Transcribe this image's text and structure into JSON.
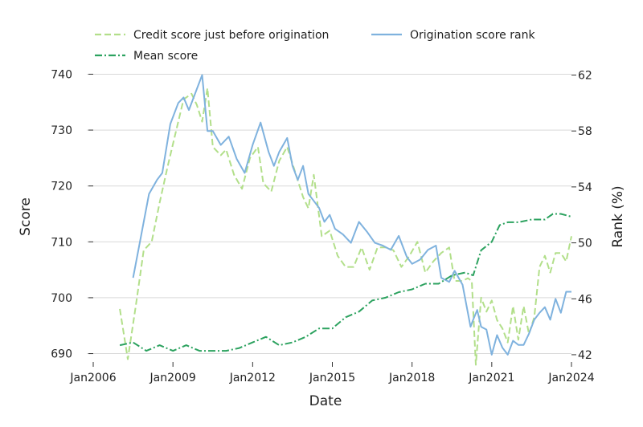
{
  "chart_data": {
    "type": "line",
    "xlabel": "Date",
    "ylabel_left": "Score",
    "ylabel_right": "Rank (%)",
    "x_ticks": [
      "Jan2006",
      "Jan2009",
      "Jan2012",
      "Jan2015",
      "Jan2018",
      "Jan2021",
      "Jan2024"
    ],
    "xlim": [
      2006.0,
      2024.0
    ],
    "ylim_left": [
      688.5,
      741.5
    ],
    "ylim_right": [
      41.48,
      62.66
    ],
    "y_ticks_left": [
      690,
      700,
      710,
      720,
      730,
      740
    ],
    "y_ticks_right": [
      42,
      46,
      50,
      54,
      58,
      62
    ],
    "grid": "horizontal, left axis",
    "legend_position": "top",
    "legend": [
      "Credit score just before origination",
      "Origination score rank",
      "Mean score"
    ],
    "series": [
      {
        "name": "Credit score just before origination",
        "axis": "left",
        "style": "dashed",
        "color": "#b2df8a",
        "x": [
          2007.0,
          2007.3,
          2007.6,
          2007.9,
          2008.2,
          2008.5,
          2008.8,
          2009.1,
          2009.4,
          2009.7,
          2009.9,
          2010.1,
          2010.3,
          2010.5,
          2010.8,
          2011.0,
          2011.3,
          2011.6,
          2011.9,
          2012.2,
          2012.4,
          2012.7,
          2013.0,
          2013.3,
          2013.6,
          2013.9,
          2014.1,
          2014.3,
          2014.6,
          2014.9,
          2015.2,
          2015.5,
          2015.8,
          2016.1,
          2016.4,
          2016.7,
          2017.0,
          2017.3,
          2017.6,
          2017.9,
          2018.2,
          2018.5,
          2018.8,
          2019.1,
          2019.4,
          2019.6,
          2019.9,
          2020.1,
          2020.25,
          2020.4,
          2020.6,
          2020.8,
          2021.0,
          2021.2,
          2021.4,
          2021.6,
          2021.8,
          2022.0,
          2022.2,
          2022.4,
          2022.6,
          2022.8,
          2023.0,
          2023.2,
          2023.4,
          2023.6,
          2023.8,
          2024.0
        ],
        "values": [
          698.0,
          689.0,
          698.5,
          708.5,
          710.0,
          717.0,
          723.5,
          729.5,
          735.5,
          736.5,
          734.5,
          731.5,
          737.5,
          727.0,
          725.5,
          726.5,
          722.0,
          719.5,
          725.0,
          727.0,
          720.5,
          719.0,
          724.5,
          727.0,
          722.5,
          718.0,
          716.0,
          722.0,
          711.0,
          712.0,
          707.5,
          705.5,
          705.5,
          709.0,
          705.0,
          709.0,
          709.0,
          708.5,
          705.5,
          707.5,
          710.0,
          704.5,
          706.5,
          708.0,
          709.0,
          703.0,
          703.0,
          703.5,
          703.0,
          688.0,
          700.0,
          697.5,
          699.5,
          696.0,
          694.5,
          692.0,
          698.5,
          692.5,
          698.5,
          693.5,
          696.5,
          705.5,
          707.5,
          704.5,
          708.0,
          708.0,
          706.5,
          711.0
        ]
      },
      {
        "name": "Origination score rank",
        "axis": "right",
        "style": "solid",
        "color": "#7fb2de",
        "x": [
          2007.5,
          2007.8,
          2008.1,
          2008.4,
          2008.6,
          2008.9,
          2009.2,
          2009.4,
          2009.6,
          2009.9,
          2010.1,
          2010.3,
          2010.5,
          2010.8,
          2011.1,
          2011.4,
          2011.7,
          2012.0,
          2012.3,
          2012.6,
          2012.8,
          2013.0,
          2013.3,
          2013.5,
          2013.7,
          2013.9,
          2014.1,
          2014.3,
          2014.5,
          2014.7,
          2014.9,
          2015.1,
          2015.4,
          2015.7,
          2016.0,
          2016.3,
          2016.6,
          2016.9,
          2017.2,
          2017.5,
          2017.8,
          2018.0,
          2018.3,
          2018.6,
          2018.9,
          2019.1,
          2019.4,
          2019.6,
          2019.9,
          2020.2,
          2020.3,
          2020.45,
          2020.6,
          2020.8,
          2021.0,
          2021.2,
          2021.4,
          2021.6,
          2021.8,
          2022.0,
          2022.2,
          2022.4,
          2022.6,
          2022.8,
          2023.0,
          2023.2,
          2023.4,
          2023.6,
          2023.8,
          2024.0
        ],
        "values": [
          47.5,
          50.5,
          53.5,
          54.5,
          55.0,
          58.5,
          60.0,
          60.4,
          59.5,
          61.0,
          62.0,
          58.0,
          58.0,
          57.0,
          57.6,
          56.0,
          55.0,
          57.0,
          58.6,
          56.5,
          55.5,
          56.5,
          57.5,
          55.5,
          54.5,
          55.5,
          53.5,
          53.0,
          52.5,
          51.5,
          52.0,
          51.0,
          50.6,
          50.0,
          51.5,
          50.8,
          50.0,
          49.8,
          49.5,
          50.5,
          49.0,
          48.5,
          48.8,
          49.5,
          49.8,
          47.5,
          47.2,
          48.0,
          47.0,
          44.0,
          44.5,
          45.2,
          44.0,
          43.8,
          42.0,
          43.4,
          42.5,
          42.0,
          43.0,
          42.7,
          42.7,
          43.5,
          44.5,
          45.0,
          45.4,
          44.5,
          46.0,
          45.0,
          46.5,
          46.5
        ]
      },
      {
        "name": "Mean score",
        "axis": "left",
        "style": "dashdot",
        "color": "#2ca25f",
        "x": [
          2007.0,
          2007.5,
          2008.0,
          2008.5,
          2009.0,
          2009.5,
          2010.0,
          2010.5,
          2011.0,
          2011.5,
          2012.0,
          2012.5,
          2013.0,
          2013.5,
          2014.0,
          2014.5,
          2015.0,
          2015.5,
          2016.0,
          2016.5,
          2017.0,
          2017.5,
          2018.0,
          2018.5,
          2019.0,
          2019.5,
          2020.0,
          2020.3,
          2020.6,
          2021.0,
          2021.3,
          2021.6,
          2022.0,
          2022.5,
          2023.0,
          2023.3,
          2023.6,
          2024.0
        ],
        "values": [
          691.5,
          692.0,
          690.5,
          691.5,
          690.5,
          691.5,
          690.5,
          690.5,
          690.5,
          691.0,
          692.0,
          693.0,
          691.5,
          692.0,
          693.0,
          694.5,
          694.5,
          696.5,
          697.5,
          699.5,
          700.0,
          701.0,
          701.5,
          702.5,
          702.5,
          704.0,
          704.5,
          704.0,
          708.5,
          710.0,
          713.0,
          713.5,
          713.5,
          714.0,
          714.0,
          715.0,
          715.0,
          714.5
        ]
      }
    ]
  }
}
